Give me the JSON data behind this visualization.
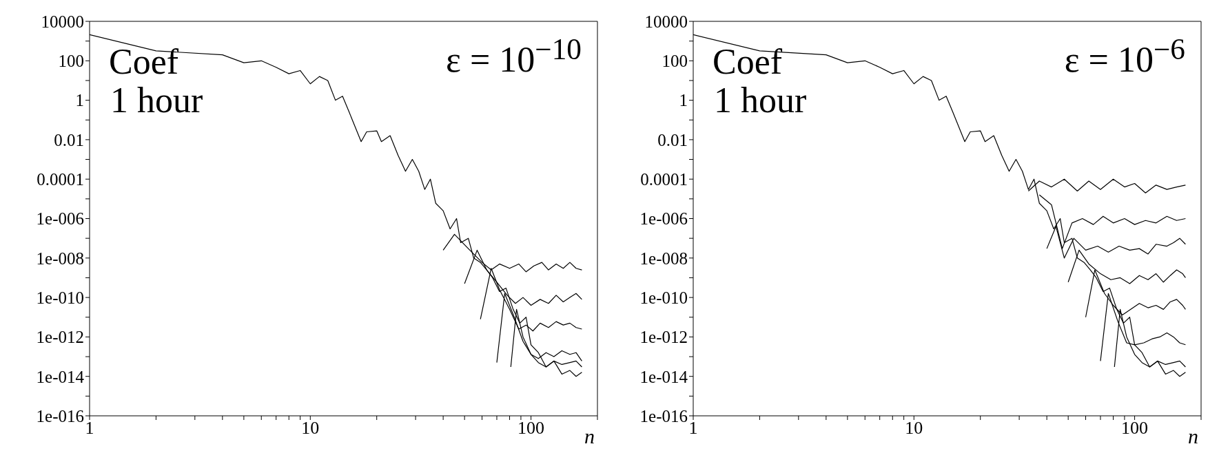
{
  "chart_data": [
    {
      "type": "line",
      "xlabel": "n",
      "annotations": [
        "Coef",
        "1 hour",
        "ε = 10$^{−10}$"
      ],
      "log": "xy",
      "marker": "none",
      "line_style": "solid",
      "xlim": [
        1,
        200
      ],
      "xticks": [
        1,
        {
          "value": 2,
          "label": null
        },
        {
          "value": 3,
          "label": null
        },
        {
          "value": 4,
          "label": null
        },
        {
          "value": 5,
          "label": null
        },
        {
          "value": 6,
          "label": null
        },
        {
          "value": 7,
          "label": null
        },
        {
          "value": 8,
          "label": null
        },
        {
          "value": 9,
          "label": null
        },
        10,
        {
          "value": 20,
          "label": null
        },
        {
          "value": 30,
          "label": null
        },
        {
          "value": 40,
          "label": null
        },
        {
          "value": 50,
          "label": null
        },
        {
          "value": 60,
          "label": null
        },
        {
          "value": 70,
          "label": null
        },
        {
          "value": 80,
          "label": null
        },
        {
          "value": 90,
          "label": null
        },
        100,
        {
          "value": 200,
          "label": null
        }
      ],
      "ylim": [
        1e-16,
        10000
      ],
      "yticks": [
        10000,
        {
          "value": 1000,
          "label": null
        },
        100,
        {
          "value": 10,
          "label": null
        },
        1,
        {
          "value": 0.1,
          "label": null
        },
        0.01,
        {
          "value": 0.001,
          "label": null
        },
        0.0001,
        {
          "value": 1e-05,
          "label": null
        },
        {
          "value": 1e-06,
          "label": "1e-006"
        },
        {
          "value": 1e-07,
          "label": null
        },
        {
          "value": 1e-08,
          "label": "1e-008"
        },
        {
          "value": 1e-09,
          "label": null
        },
        {
          "value": 1e-10,
          "label": "1e-010"
        },
        {
          "value": 1e-11,
          "label": null
        },
        {
          "value": 1e-12,
          "label": "1e-012"
        },
        {
          "value": 1e-13,
          "label": null
        },
        {
          "value": 1e-14,
          "label": "1e-014"
        },
        {
          "value": 1e-15,
          "label": null
        },
        {
          "value": 1e-16,
          "label": "1e-016"
        }
      ],
      "series": [
        {
          "color": "#000000",
          "x": [
            1,
            2,
            4,
            5,
            6,
            7,
            8,
            9,
            10,
            11,
            12,
            13,
            14,
            15,
            17,
            18,
            20,
            21,
            23,
            25,
            27,
            29,
            31,
            33,
            35,
            37,
            40,
            43,
            46,
            48,
            52,
            55,
            59,
            63,
            67,
            72,
            77,
            83,
            89,
            95,
            100,
            108,
            117,
            127,
            138,
            150,
            160,
            170
          ],
          "values": [
            2100,
            320,
            200,
            80,
            100,
            47,
            22,
            32,
            6.8,
            16,
            10,
            1,
            1.6,
            0.25,
            0.008,
            0.025,
            0.028,
            0.008,
            0.016,
            0.0016,
            0.00025,
            0.001,
            0.00025,
            3e-05,
            0.0001,
            6e-06,
            2.5e-06,
            3e-07,
            1e-06,
            6e-08,
            1e-07,
            1e-08,
            6e-09,
            2.5e-09,
            1e-09,
            2e-10,
            3e-10,
            2.5e-11,
            5e-12,
            1e-11,
            4e-13,
            1.6e-13,
            3e-14,
            6e-14,
            1.3e-14,
            2e-14,
            1e-14,
            1.6e-14
          ]
        },
        {
          "color": "#000000",
          "x": [
            40,
            45,
            52,
            60,
            66,
            72,
            80,
            88,
            95,
            103,
            112,
            120,
            130,
            140,
            150,
            160,
            170
          ],
          "values": [
            2.5e-08,
            1.6e-07,
            3e-08,
            6e-09,
            2.5e-09,
            5e-09,
            3e-09,
            5e-09,
            2e-09,
            4e-09,
            6e-09,
            2.5e-09,
            5e-09,
            3e-09,
            6e-09,
            3e-09,
            2.5e-09
          ]
        },
        {
          "color": "#000000",
          "x": [
            50,
            57,
            63,
            70,
            78,
            85,
            92,
            100,
            110,
            120,
            130,
            140,
            150,
            160,
            170
          ],
          "values": [
            5e-10,
            2.5e-08,
            2.5e-09,
            6e-10,
            1.3e-10,
            5e-11,
            1e-10,
            4e-11,
            8e-11,
            5e-11,
            1.3e-10,
            6e-11,
            1e-10,
            1.6e-10,
            8e-11
          ]
        },
        {
          "color": "#000000",
          "x": [
            59,
            66,
            72,
            80,
            88,
            95,
            102,
            110,
            120,
            130,
            140,
            150,
            160,
            170
          ],
          "values": [
            8e-12,
            3e-09,
            2.5e-10,
            2.5e-11,
            2.5e-12,
            4e-12,
            2e-12,
            5e-12,
            3e-12,
            6e-12,
            4e-12,
            5e-12,
            3e-12,
            2.5e-12
          ]
        },
        {
          "color": "#000000",
          "x": [
            70,
            76,
            84,
            92,
            100,
            108,
            117,
            127,
            138,
            150,
            160,
            170
          ],
          "values": [
            5e-14,
            1.6e-10,
            1e-11,
            6e-13,
            1.3e-13,
            8e-14,
            1.6e-13,
            1e-13,
            2e-13,
            1.3e-13,
            1.6e-13,
            6e-14
          ]
        },
        {
          "color": "#000000",
          "x": [
            81,
            86,
            92,
            100,
            108,
            117,
            127,
            138,
            150,
            160,
            170
          ],
          "values": [
            3e-14,
            2.5e-11,
            1e-12,
            1.3e-13,
            5e-14,
            3e-14,
            6e-14,
            4e-14,
            5e-14,
            6e-14,
            3e-14
          ]
        }
      ]
    },
    {
      "type": "line",
      "xlabel": "n",
      "annotations": [
        "Coef",
        "1 hour",
        "ε = 10$^{−6}$"
      ],
      "log": "xy",
      "marker": "none",
      "line_style": "solid",
      "xlim": [
        1,
        200
      ],
      "xticks": [
        1,
        {
          "value": 2,
          "label": null
        },
        {
          "value": 3,
          "label": null
        },
        {
          "value": 4,
          "label": null
        },
        {
          "value": 5,
          "label": null
        },
        {
          "value": 6,
          "label": null
        },
        {
          "value": 7,
          "label": null
        },
        {
          "value": 8,
          "label": null
        },
        {
          "value": 9,
          "label": null
        },
        10,
        {
          "value": 20,
          "label": null
        },
        {
          "value": 30,
          "label": null
        },
        {
          "value": 40,
          "label": null
        },
        {
          "value": 50,
          "label": null
        },
        {
          "value": 60,
          "label": null
        },
        {
          "value": 70,
          "label": null
        },
        {
          "value": 80,
          "label": null
        },
        {
          "value": 90,
          "label": null
        },
        100,
        {
          "value": 200,
          "label": null
        }
      ],
      "ylim": [
        1e-16,
        10000
      ],
      "yticks": [
        10000,
        {
          "value": 1000,
          "label": null
        },
        100,
        {
          "value": 10,
          "label": null
        },
        1,
        {
          "value": 0.1,
          "label": null
        },
        0.01,
        {
          "value": 0.001,
          "label": null
        },
        0.0001,
        {
          "value": 1e-05,
          "label": null
        },
        {
          "value": 1e-06,
          "label": "1e-006"
        },
        {
          "value": 1e-07,
          "label": null
        },
        {
          "value": 1e-08,
          "label": "1e-008"
        },
        {
          "value": 1e-09,
          "label": null
        },
        {
          "value": 1e-10,
          "label": "1e-010"
        },
        {
          "value": 1e-11,
          "label": null
        },
        {
          "value": 1e-12,
          "label": "1e-012"
        },
        {
          "value": 1e-13,
          "label": null
        },
        {
          "value": 1e-14,
          "label": "1e-014"
        },
        {
          "value": 1e-15,
          "label": null
        },
        {
          "value": 1e-16,
          "label": "1e-016"
        }
      ],
      "series": [
        {
          "color": "#000000",
          "x": [
            1,
            2,
            4,
            5,
            6,
            7,
            8,
            9,
            10,
            11,
            12,
            13,
            14,
            15,
            17,
            18,
            20,
            21,
            23,
            25,
            27,
            29,
            31,
            33,
            35,
            37,
            40,
            43,
            46,
            48,
            52,
            55,
            59,
            63,
            67,
            72,
            77,
            83,
            89,
            95,
            100,
            108,
            117,
            127,
            138,
            150,
            160,
            170
          ],
          "values": [
            2100,
            320,
            200,
            80,
            100,
            47,
            22,
            32,
            6.8,
            16,
            10,
            1,
            1.6,
            0.25,
            0.008,
            0.025,
            0.028,
            0.008,
            0.016,
            0.0016,
            0.00025,
            0.001,
            0.00025,
            3e-05,
            0.0001,
            6e-06,
            2.5e-06,
            3e-07,
            1e-06,
            6e-08,
            1e-07,
            1e-08,
            6e-09,
            2.5e-09,
            1e-09,
            2e-10,
            3e-10,
            2.5e-11,
            5e-12,
            1e-11,
            4e-13,
            1.6e-13,
            3e-14,
            6e-14,
            1.3e-14,
            2e-14,
            1e-14,
            1.6e-14
          ]
        },
        {
          "color": "#000000",
          "x": [
            33,
            37,
            42,
            48,
            55,
            62,
            70,
            80,
            90,
            100,
            112,
            125,
            140,
            155,
            170
          ],
          "values": [
            2.5e-05,
            8e-05,
            4e-05,
            0.0001,
            2.5e-05,
            8e-05,
            3e-05,
            0.0001,
            4e-05,
            6e-05,
            2e-05,
            5e-05,
            3e-05,
            4e-05,
            5e-05
          ]
        },
        {
          "color": "#000000",
          "x": [
            37,
            42,
            47,
            52,
            58,
            65,
            72,
            80,
            90,
            100,
            112,
            125,
            140,
            155,
            170
          ],
          "values": [
            1.6e-05,
            5e-06,
            3e-08,
            6e-07,
            1e-06,
            5e-07,
            1.3e-06,
            6e-07,
            1e-06,
            5e-07,
            8e-07,
            6e-07,
            1.3e-06,
            8e-07,
            1e-06
          ]
        },
        {
          "color": "#000000",
          "x": [
            40,
            44,
            48,
            53,
            60,
            68,
            76,
            85,
            95,
            105,
            115,
            125,
            140,
            150,
            160,
            170
          ],
          "values": [
            3e-08,
            4e-07,
            1e-08,
            1e-07,
            2.5e-08,
            4e-08,
            2e-08,
            4e-08,
            2.5e-08,
            3e-08,
            1.6e-08,
            5e-08,
            4e-08,
            6e-08,
            1e-07,
            5e-08
          ]
        },
        {
          "color": "#000000",
          "x": [
            50,
            56,
            62,
            70,
            78,
            86,
            95,
            105,
            115,
            125,
            135,
            145,
            155,
            165,
            170
          ],
          "values": [
            6e-10,
            2.5e-08,
            5e-09,
            1.6e-09,
            8e-10,
            1e-09,
            5e-10,
            1.3e-09,
            8e-10,
            1.6e-09,
            6e-10,
            1.3e-09,
            2.5e-09,
            1.6e-09,
            1e-09
          ]
        },
        {
          "color": "#000000",
          "x": [
            60,
            66,
            73,
            80,
            88,
            96,
            105,
            115,
            125,
            135,
            145,
            155,
            165,
            170
          ],
          "values": [
            1e-11,
            2.5e-09,
            1.6e-10,
            4e-11,
            1.3e-11,
            2.5e-11,
            5e-11,
            3e-11,
            4e-11,
            2.5e-11,
            6e-11,
            8e-11,
            4e-11,
            2.5e-11
          ]
        },
        {
          "color": "#000000",
          "x": [
            70,
            76,
            84,
            92,
            100,
            110,
            120,
            130,
            140,
            150,
            160,
            170
          ],
          "values": [
            6e-14,
            1.6e-10,
            6e-12,
            5e-13,
            4e-13,
            5e-13,
            8e-13,
            1e-12,
            1.6e-12,
            1e-12,
            5e-13,
            4e-13
          ]
        },
        {
          "color": "#000000",
          "x": [
            81,
            86,
            92,
            100,
            108,
            117,
            127,
            138,
            150,
            160,
            170
          ],
          "values": [
            3e-14,
            2.5e-11,
            1e-12,
            1.3e-13,
            5e-14,
            3e-14,
            6e-14,
            4e-14,
            5e-14,
            6e-14,
            3e-14
          ]
        }
      ]
    }
  ]
}
